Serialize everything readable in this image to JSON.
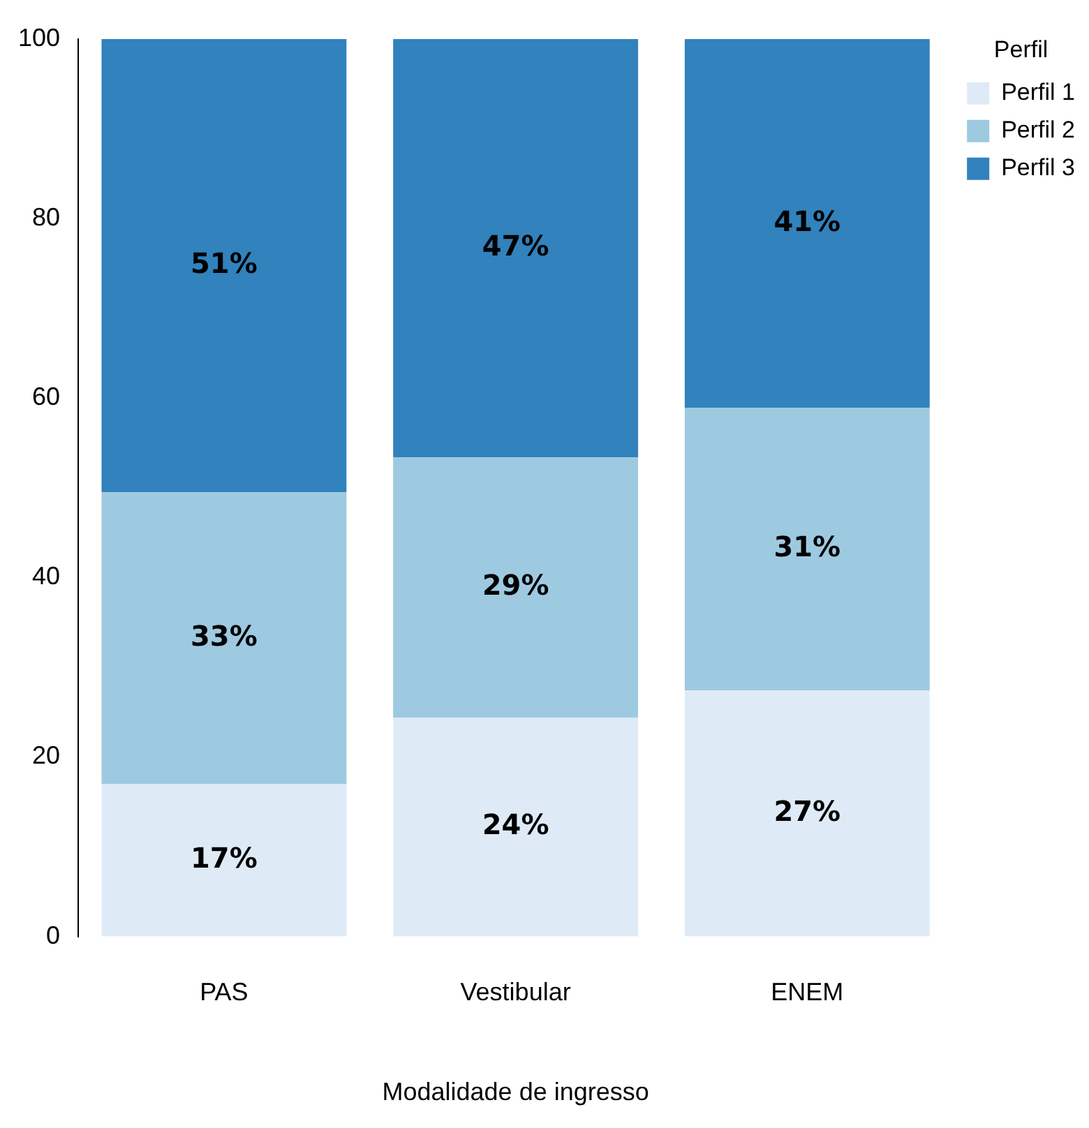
{
  "chart_data": {
    "type": "bar",
    "stacked": true,
    "xlabel": "Modalidade de ingresso",
    "legend_title": "Perfil",
    "legend": "top right",
    "categories": [
      "PAS",
      "Vestibular",
      "ENEM"
    ],
    "series": [
      {
        "name": "Perfil 1",
        "color": "#deebf7",
        "values": [
          17.0,
          24.4,
          27.4
        ],
        "value_labels": [
          "17%",
          "24%",
          "27%"
        ]
      },
      {
        "name": "Perfil 2",
        "color": "#9ecae1",
        "values": [
          32.5,
          29.0,
          31.5
        ],
        "value_labels": [
          "33%",
          "29%",
          "31%"
        ]
      },
      {
        "name": "Perfil 3",
        "color": "#3182bd",
        "values": [
          50.5,
          46.6,
          41.1
        ],
        "value_labels": [
          "51%",
          "47%",
          "41%"
        ]
      }
    ],
    "ylim": [
      0,
      100
    ],
    "yticks": [
      0,
      20,
      40,
      60,
      80,
      100
    ],
    "grid": false
  }
}
